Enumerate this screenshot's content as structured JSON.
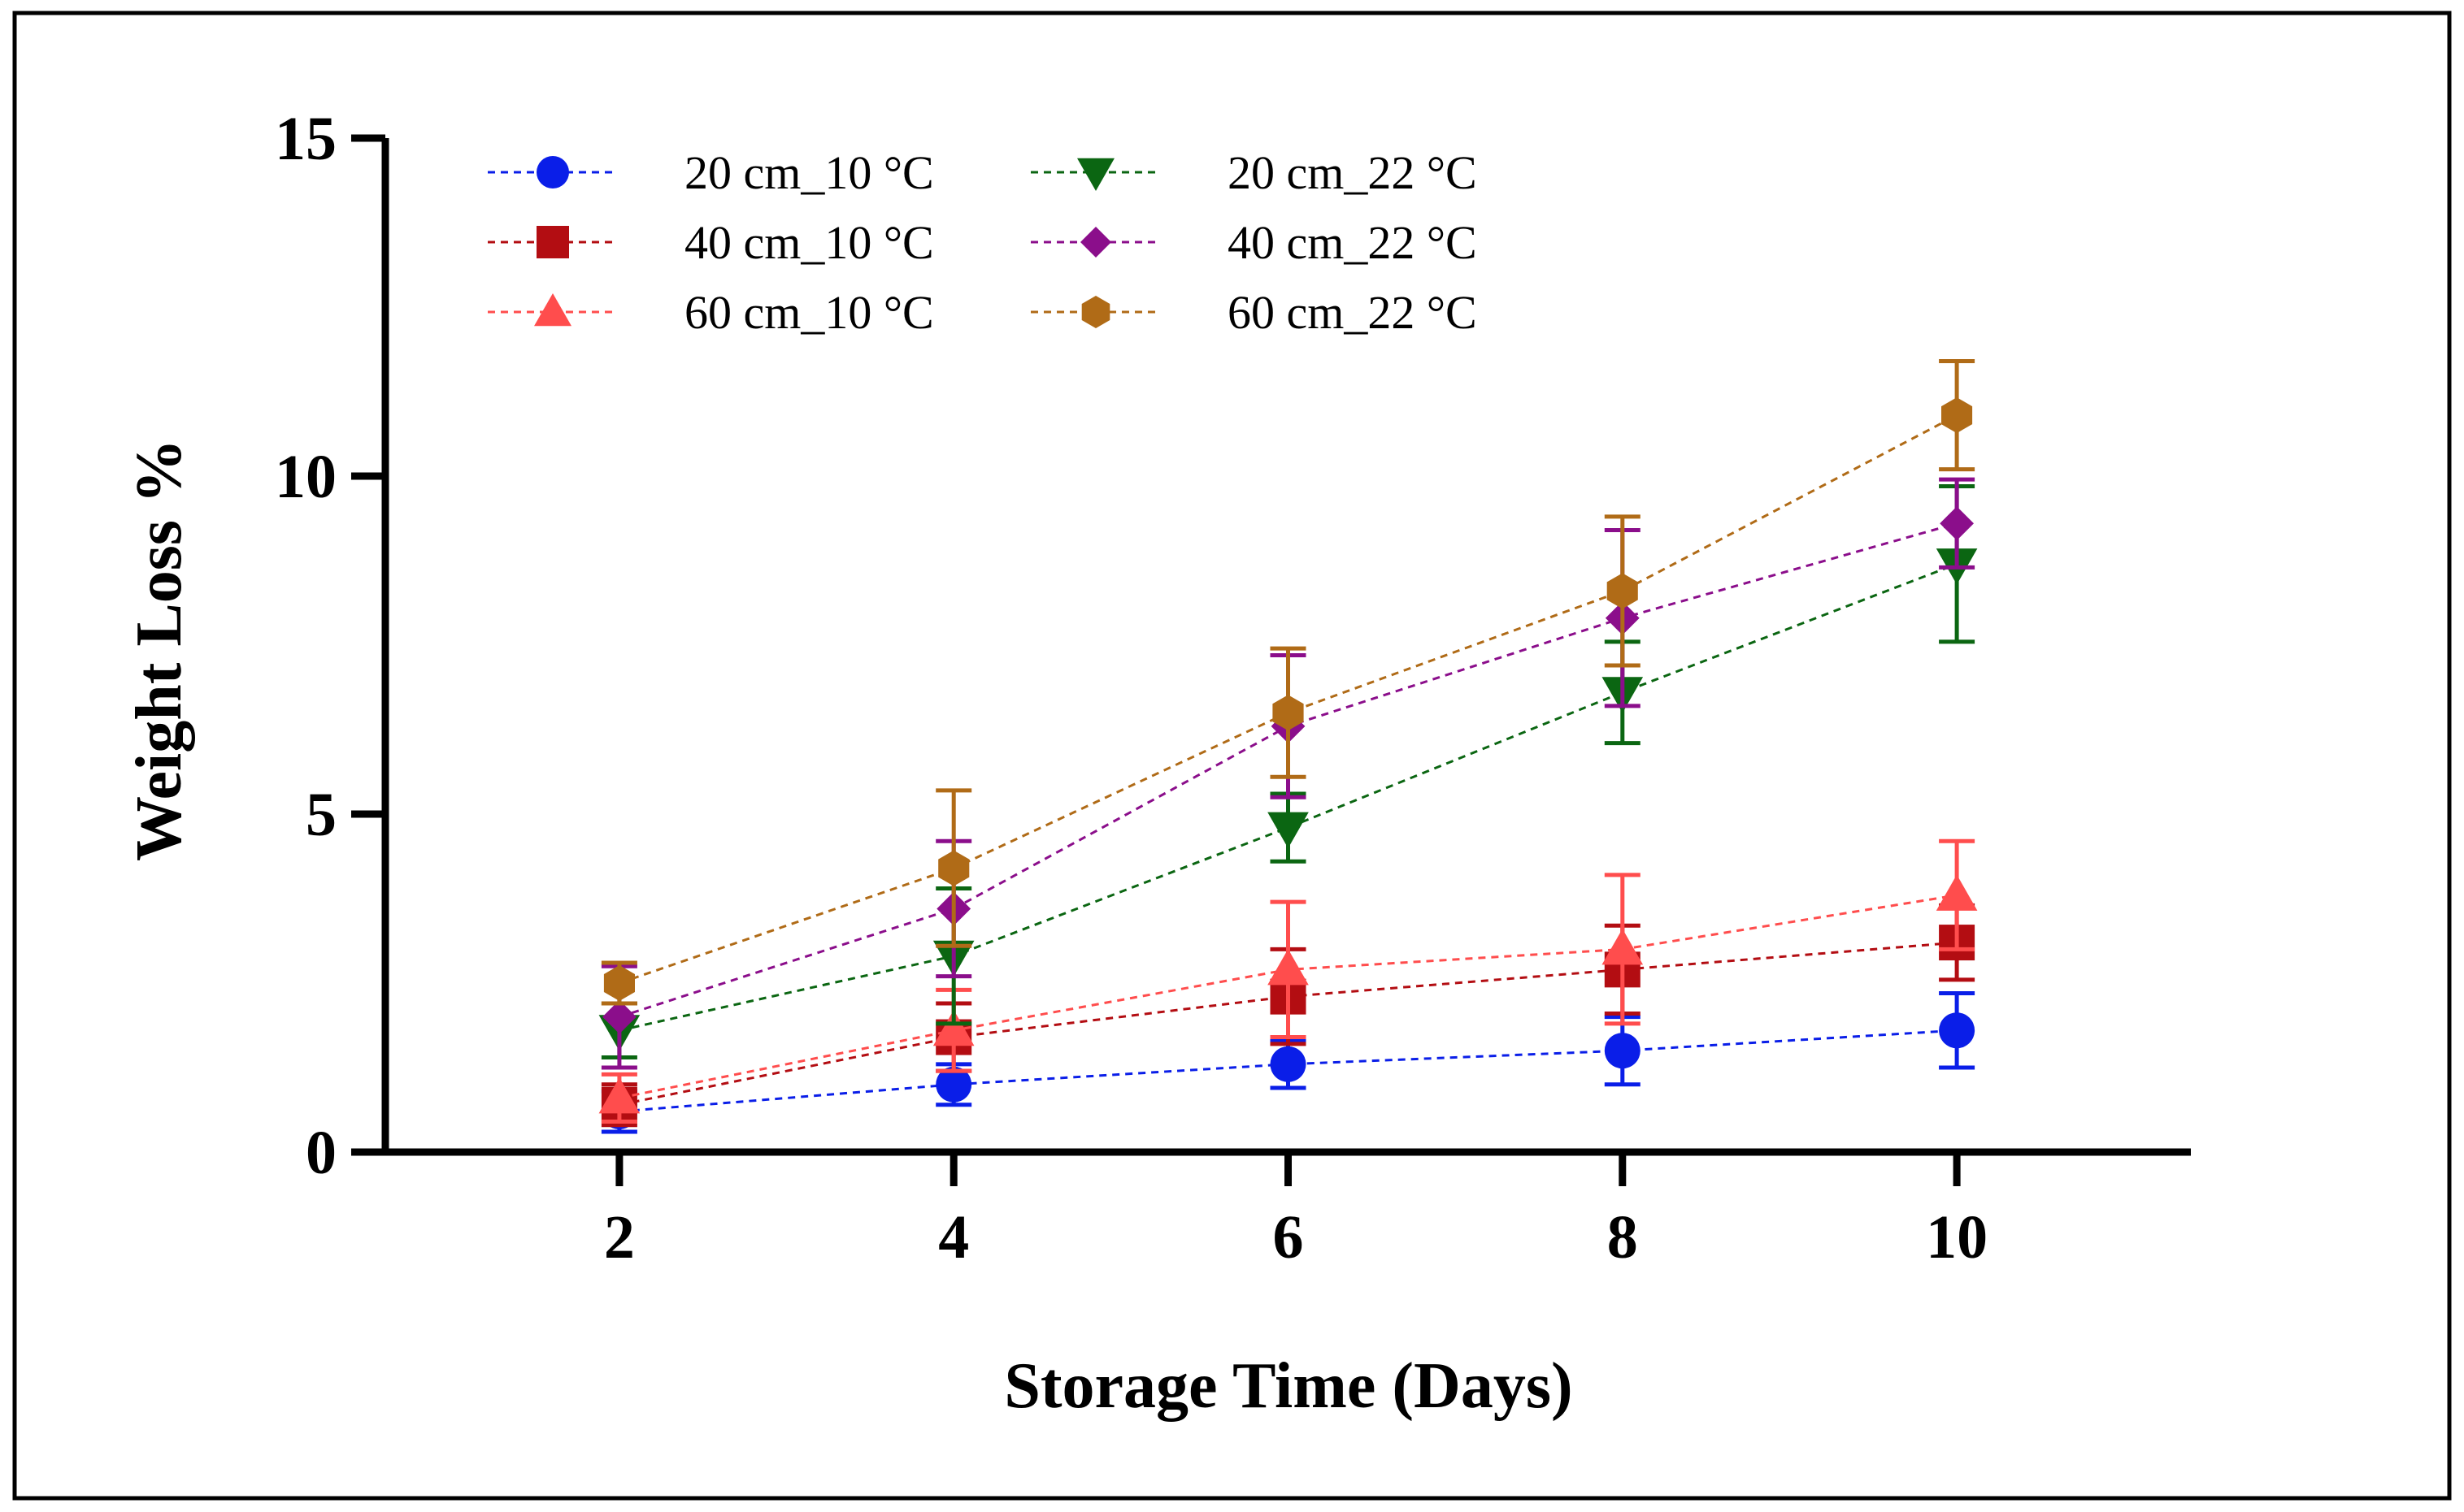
{
  "chart_data": {
    "type": "line",
    "title": "",
    "xlabel": "Storage Time (Days)",
    "ylabel": "Weight Loss %",
    "xticks": [
      "2",
      "4",
      "6",
      "8",
      "10"
    ],
    "yticks": [
      "0",
      "5",
      "10",
      "15"
    ],
    "x": [
      2,
      4,
      6,
      8,
      10
    ],
    "xlim": [
      0.6,
      11.4
    ],
    "ylim": [
      0,
      15
    ],
    "grid": false,
    "legend_position": "top-left",
    "series": [
      {
        "name": "20 cm_10 °C",
        "marker": "circle",
        "color": "#0a1ee8",
        "values": [
          0.6,
          1.0,
          1.3,
          1.5,
          1.8
        ],
        "errors": [
          0.3,
          0.3,
          0.35,
          0.5,
          0.55
        ]
      },
      {
        "name": "40 cm_10 °C",
        "marker": "square",
        "color": "#b30d12",
        "values": [
          0.7,
          1.7,
          2.3,
          2.7,
          3.1
        ],
        "errors": [
          0.3,
          0.5,
          0.7,
          0.65,
          0.55
        ]
      },
      {
        "name": "60 cm_10 °C",
        "marker": "triangle-up",
        "color": "#ff4d4d",
        "values": [
          0.8,
          1.8,
          2.7,
          3.0,
          3.8
        ],
        "errors": [
          0.35,
          0.6,
          1.0,
          1.1,
          0.8
        ]
      },
      {
        "name": "20 cm_22 °C",
        "marker": "triangle-down",
        "color": "#0b6612",
        "values": [
          1.8,
          2.9,
          4.8,
          6.8,
          8.7
        ],
        "errors": [
          0.4,
          1.0,
          0.5,
          0.75,
          1.15
        ]
      },
      {
        "name": "40 cm_22 °C",
        "marker": "diamond",
        "color": "#8b0e8b",
        "values": [
          2.0,
          3.6,
          6.3,
          7.9,
          9.3
        ],
        "errors": [
          0.75,
          1.0,
          1.05,
          1.3,
          0.65
        ]
      },
      {
        "name": "60 cm_22 °C",
        "marker": "hexagon",
        "color": "#b06b17",
        "values": [
          2.5,
          4.2,
          6.5,
          8.3,
          10.9
        ],
        "errors": [
          0.3,
          1.15,
          0.95,
          1.1,
          0.8
        ]
      }
    ]
  }
}
